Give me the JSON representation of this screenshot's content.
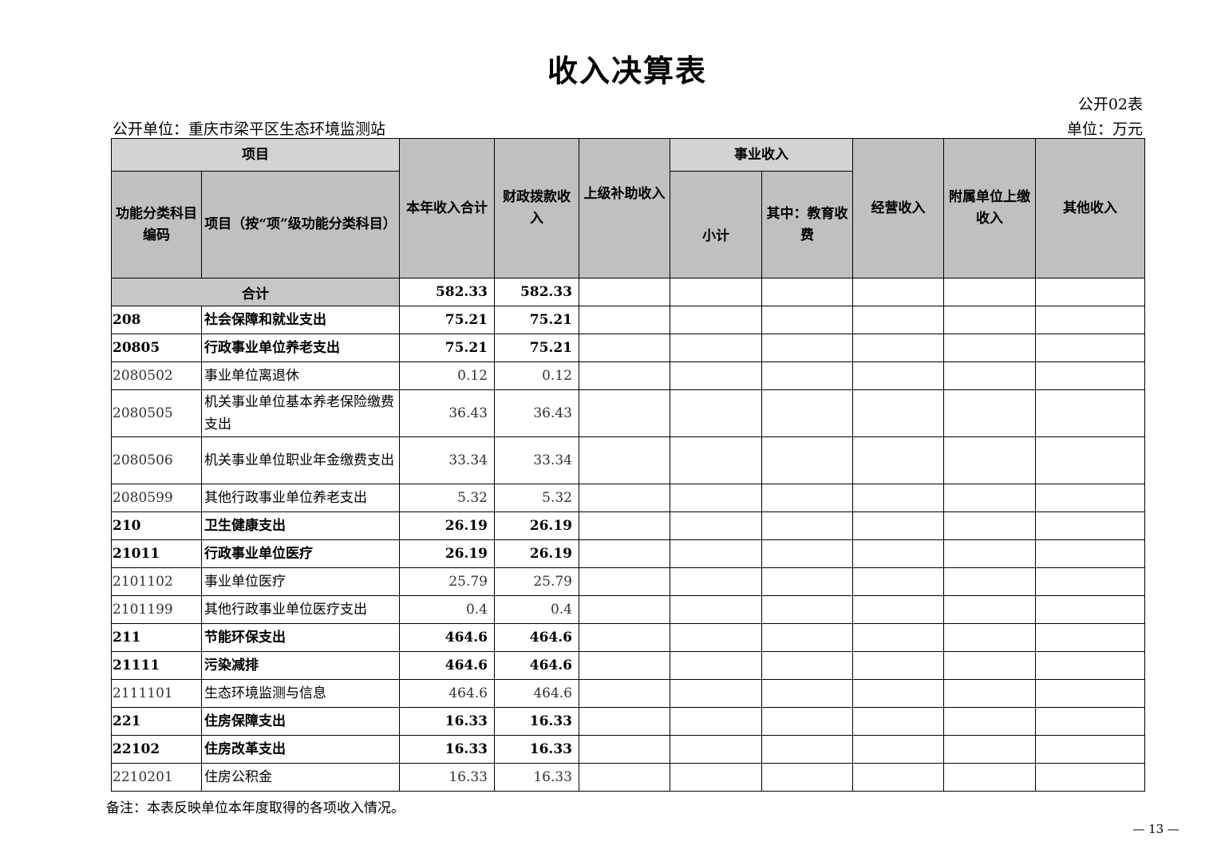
{
  "title": "收入决算表",
  "form_no": "公开02表",
  "unit_name": "公开单位：重庆市梁平区生态环境监测站",
  "unit": "单位：万元",
  "headers": {
    "item_group": "项目",
    "code": "功能分类科目编码",
    "name": "项目（按“项”级功能分类科目）",
    "total": "本年收入合计",
    "fiscal": "财政拨款收入",
    "superior": "上级补助收入",
    "business_group": "事业收入",
    "subtotal": "小计",
    "education": "其中：教育收费",
    "operating": "经营收入",
    "affiliated": "附属单位上缴收入",
    "other": "其他收入"
  },
  "total_row": {
    "label": "合计",
    "total": "582.33",
    "fiscal": "582.33"
  },
  "rows": [
    {
      "code": "208",
      "name": "社会保障和就业支出",
      "total": "75.21",
      "fiscal": "75.21",
      "bold": true
    },
    {
      "code": "20805",
      "name": "行政事业单位养老支出",
      "total": "75.21",
      "fiscal": "75.21",
      "bold": true
    },
    {
      "code": "2080502",
      "name": "事业单位离退休",
      "total": "0.12",
      "fiscal": "0.12",
      "bold": false
    },
    {
      "code": "2080505",
      "name": "机关事业单位基本养老保险缴费支出",
      "total": "36.43",
      "fiscal": "36.43",
      "bold": false
    },
    {
      "code": "2080506",
      "name": "机关事业单位职业年金缴费支出",
      "total": "33.34",
      "fiscal": "33.34",
      "bold": false
    },
    {
      "code": "2080599",
      "name": "其他行政事业单位养老支出",
      "total": "5.32",
      "fiscal": "5.32",
      "bold": false
    },
    {
      "code": "210",
      "name": "卫生健康支出",
      "total": "26.19",
      "fiscal": "26.19",
      "bold": true
    },
    {
      "code": "21011",
      "name": "行政事业单位医疗",
      "total": "26.19",
      "fiscal": "26.19",
      "bold": true
    },
    {
      "code": "2101102",
      "name": "事业单位医疗",
      "total": "25.79",
      "fiscal": "25.79",
      "bold": false
    },
    {
      "code": "2101199",
      "name": "其他行政事业单位医疗支出",
      "total": "0.4",
      "fiscal": "0.4",
      "bold": false
    },
    {
      "code": "211",
      "name": "节能环保支出",
      "total": "464.6",
      "fiscal": "464.6",
      "bold": true
    },
    {
      "code": "21111",
      "name": "污染减排",
      "total": "464.6",
      "fiscal": "464.6",
      "bold": true
    },
    {
      "code": "2111101",
      "name": "生态环境监测与信息",
      "total": "464.6",
      "fiscal": "464.6",
      "bold": false
    },
    {
      "code": "221",
      "name": "住房保障支出",
      "total": "16.33",
      "fiscal": "16.33",
      "bold": true
    },
    {
      "code": "22102",
      "name": "住房改革支出",
      "total": "16.33",
      "fiscal": "16.33",
      "bold": true
    },
    {
      "code": "2210201",
      "name": "住房公积金",
      "total": "16.33",
      "fiscal": "16.33",
      "bold": false
    }
  ],
  "note": "备注：本表反映单位本年度取得的各项收入情况。",
  "page_number": "— 13 —"
}
